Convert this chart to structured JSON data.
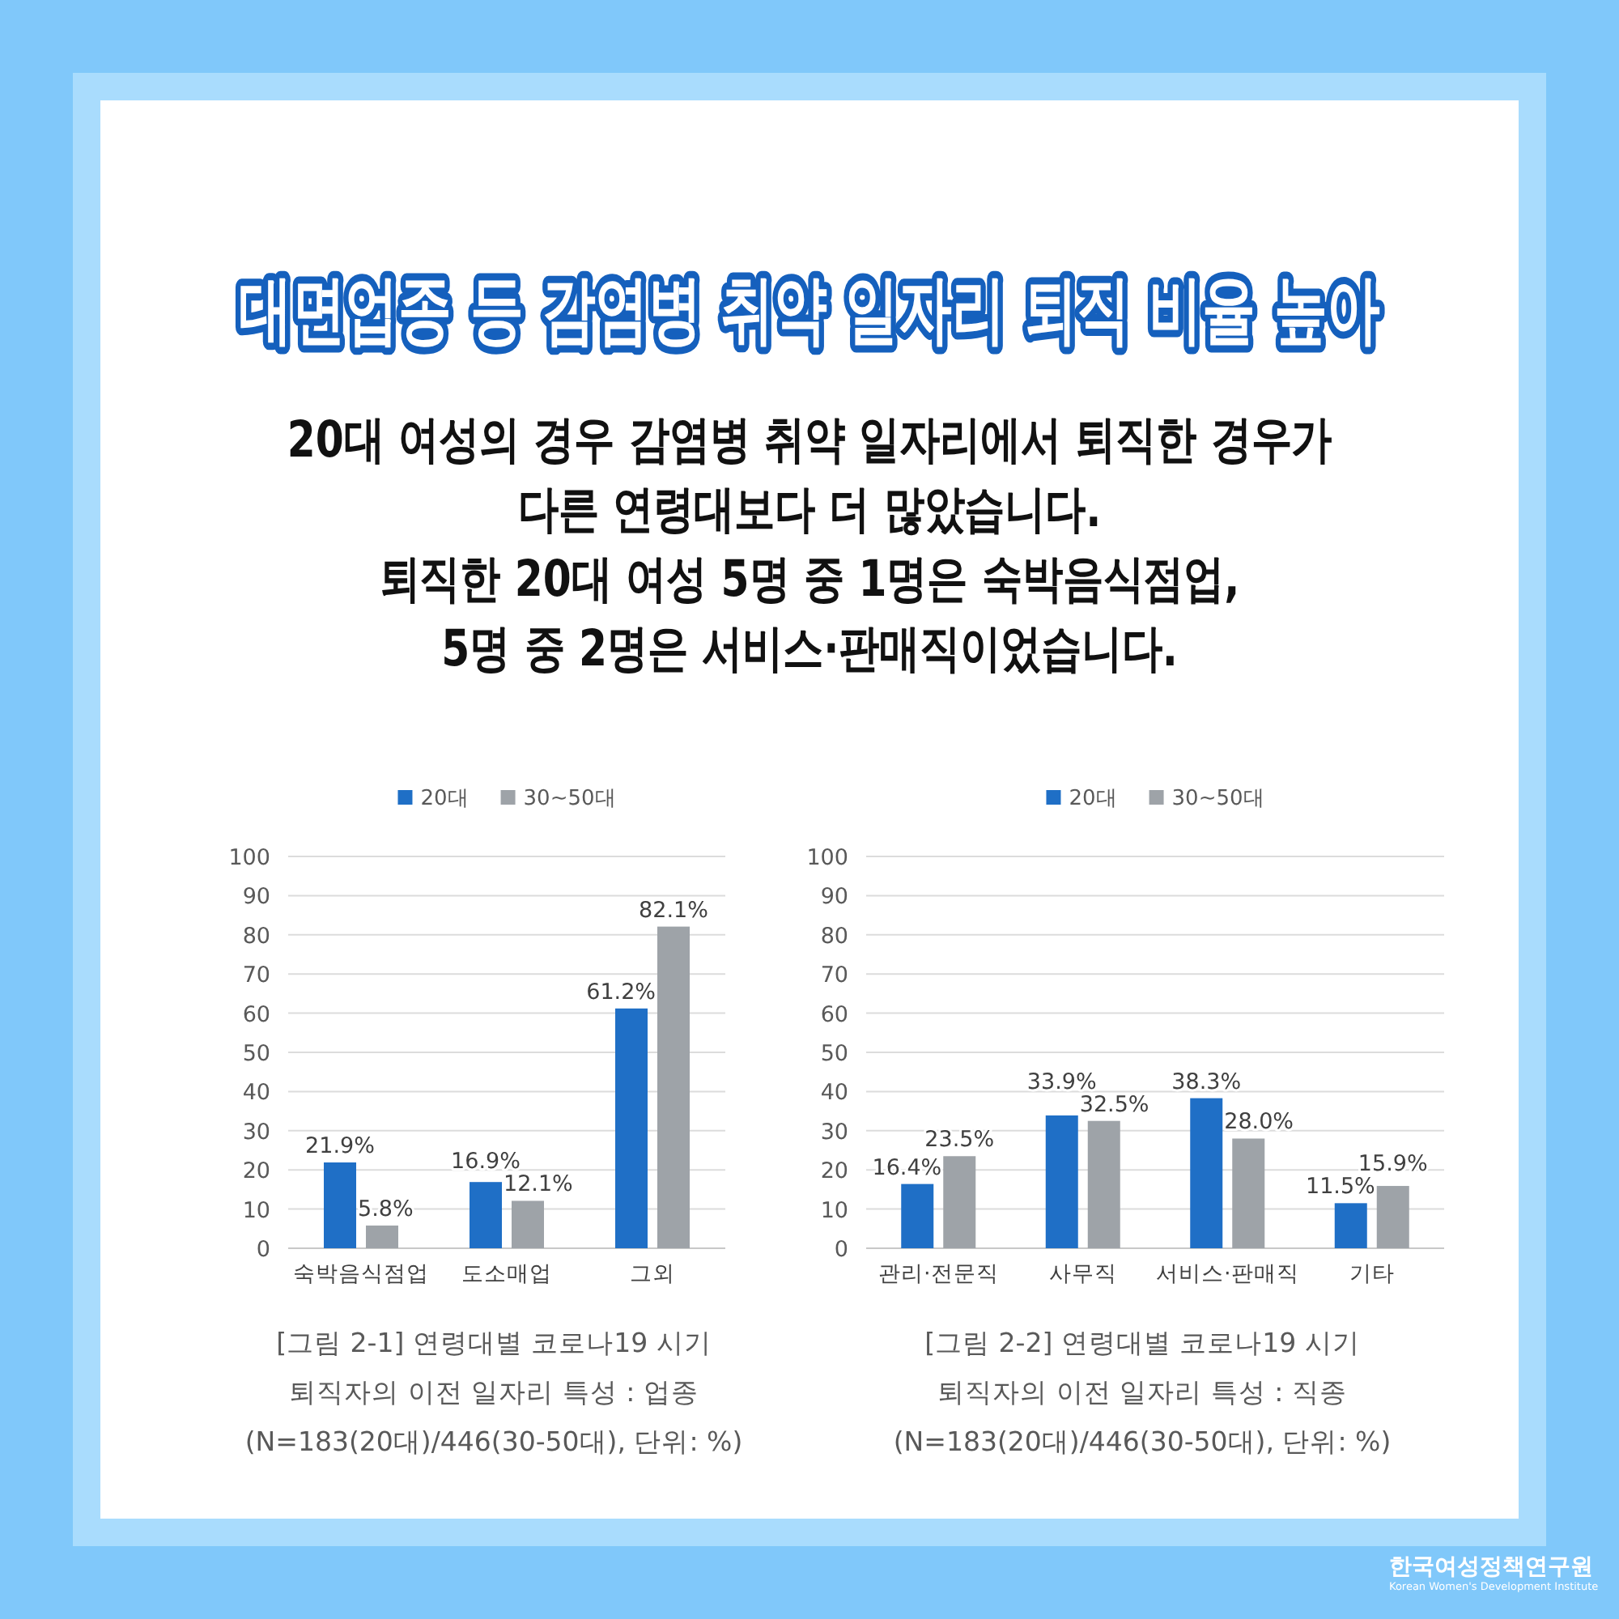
{
  "chart_data": [
    {
      "type": "bar",
      "title": "대면업종 등 감염병 취약 일자리 퇴직 비율 높아",
      "subtitle": "20대 여성의 경우 감염병 취약 일자리에서 퇴직한 경우가\n다른 연령대보다 더 많았습니다.\n퇴직한 20대 여성 5명 중 1명은 숙박음식점업,\n5명 중 2명은 서비스·판매직이었습니다.",
      "categories": [
        "숙박음식점업",
        "도소매업",
        "그외"
      ],
      "series": [
        {
          "name": "20대",
          "color": "#1f6fc6",
          "values": [
            21.9,
            16.9,
            61.2
          ],
          "value_labels": [
            "21.9%",
            "16.9%",
            "61.2%"
          ]
        },
        {
          "name": "30~50대",
          "color": "#9ea3a8",
          "values": [
            5.8,
            12.1,
            82.1
          ],
          "value_labels": [
            "5.8%",
            "12.1%",
            "82.1%"
          ]
        }
      ],
      "ylim": [
        0,
        100
      ],
      "yticks": [
        0,
        10,
        20,
        30,
        40,
        50,
        60,
        70,
        80,
        90,
        100
      ],
      "grid": "y",
      "legend": "top",
      "annotations": [
        "[그림 2-1] 연령대별 코로나19 시기\n퇴직자의 이전 일자리 특성 : 업종\n(N=183(20대)/446(30-50대), 단위: %)"
      ]
    },
    {
      "type": "bar",
      "categories": [
        "관리·전문직",
        "사무직",
        "서비스·판매직",
        "기타"
      ],
      "series": [
        {
          "name": "20대",
          "color": "#1f6fc6",
          "values": [
            16.4,
            33.9,
            38.3,
            11.5
          ],
          "value_labels": [
            "16.4%",
            "33.9%",
            "38.3%",
            "11.5%"
          ]
        },
        {
          "name": "30~50대",
          "color": "#9ea3a8",
          "values": [
            23.5,
            32.5,
            28.0,
            15.9
          ],
          "value_labels": [
            "23.5%",
            "32.5%",
            "28.0%",
            "15.9%"
          ]
        }
      ],
      "ylim": [
        0,
        100
      ],
      "yticks": [
        0,
        10,
        20,
        30,
        40,
        50,
        60,
        70,
        80,
        90,
        100
      ],
      "grid": "y",
      "legend": "top",
      "annotations": [
        "[그림 2-2] 연령대별 코로나19 시기\n퇴직자의 이전 일자리 특성 : 직종\n(N=183(20대)/446(30-50대), 단위: %)",
        "한국여성정책연구원\nKorean Women's Development Institute"
      ]
    }
  ]
}
